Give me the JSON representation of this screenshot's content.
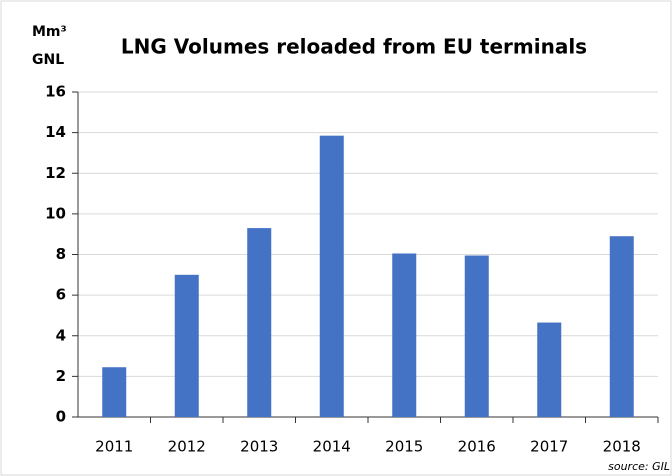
{
  "chart_data": {
    "type": "bar",
    "title": "LNG Volumes reloaded from EU terminals",
    "ylabel": [
      "Mm³",
      "GNL"
    ],
    "source": "source: GIL",
    "categories": [
      "2011",
      "2012",
      "2013",
      "2014",
      "2015",
      "2016",
      "2017",
      "2018"
    ],
    "values": [
      2.45,
      7.0,
      9.3,
      13.85,
      8.05,
      7.95,
      4.65,
      8.9
    ],
    "color": "#4472c4",
    "ylim": [
      0,
      16
    ],
    "yticks": [
      0,
      2,
      4,
      6,
      8,
      10,
      12,
      14,
      16
    ],
    "grid": true
  }
}
